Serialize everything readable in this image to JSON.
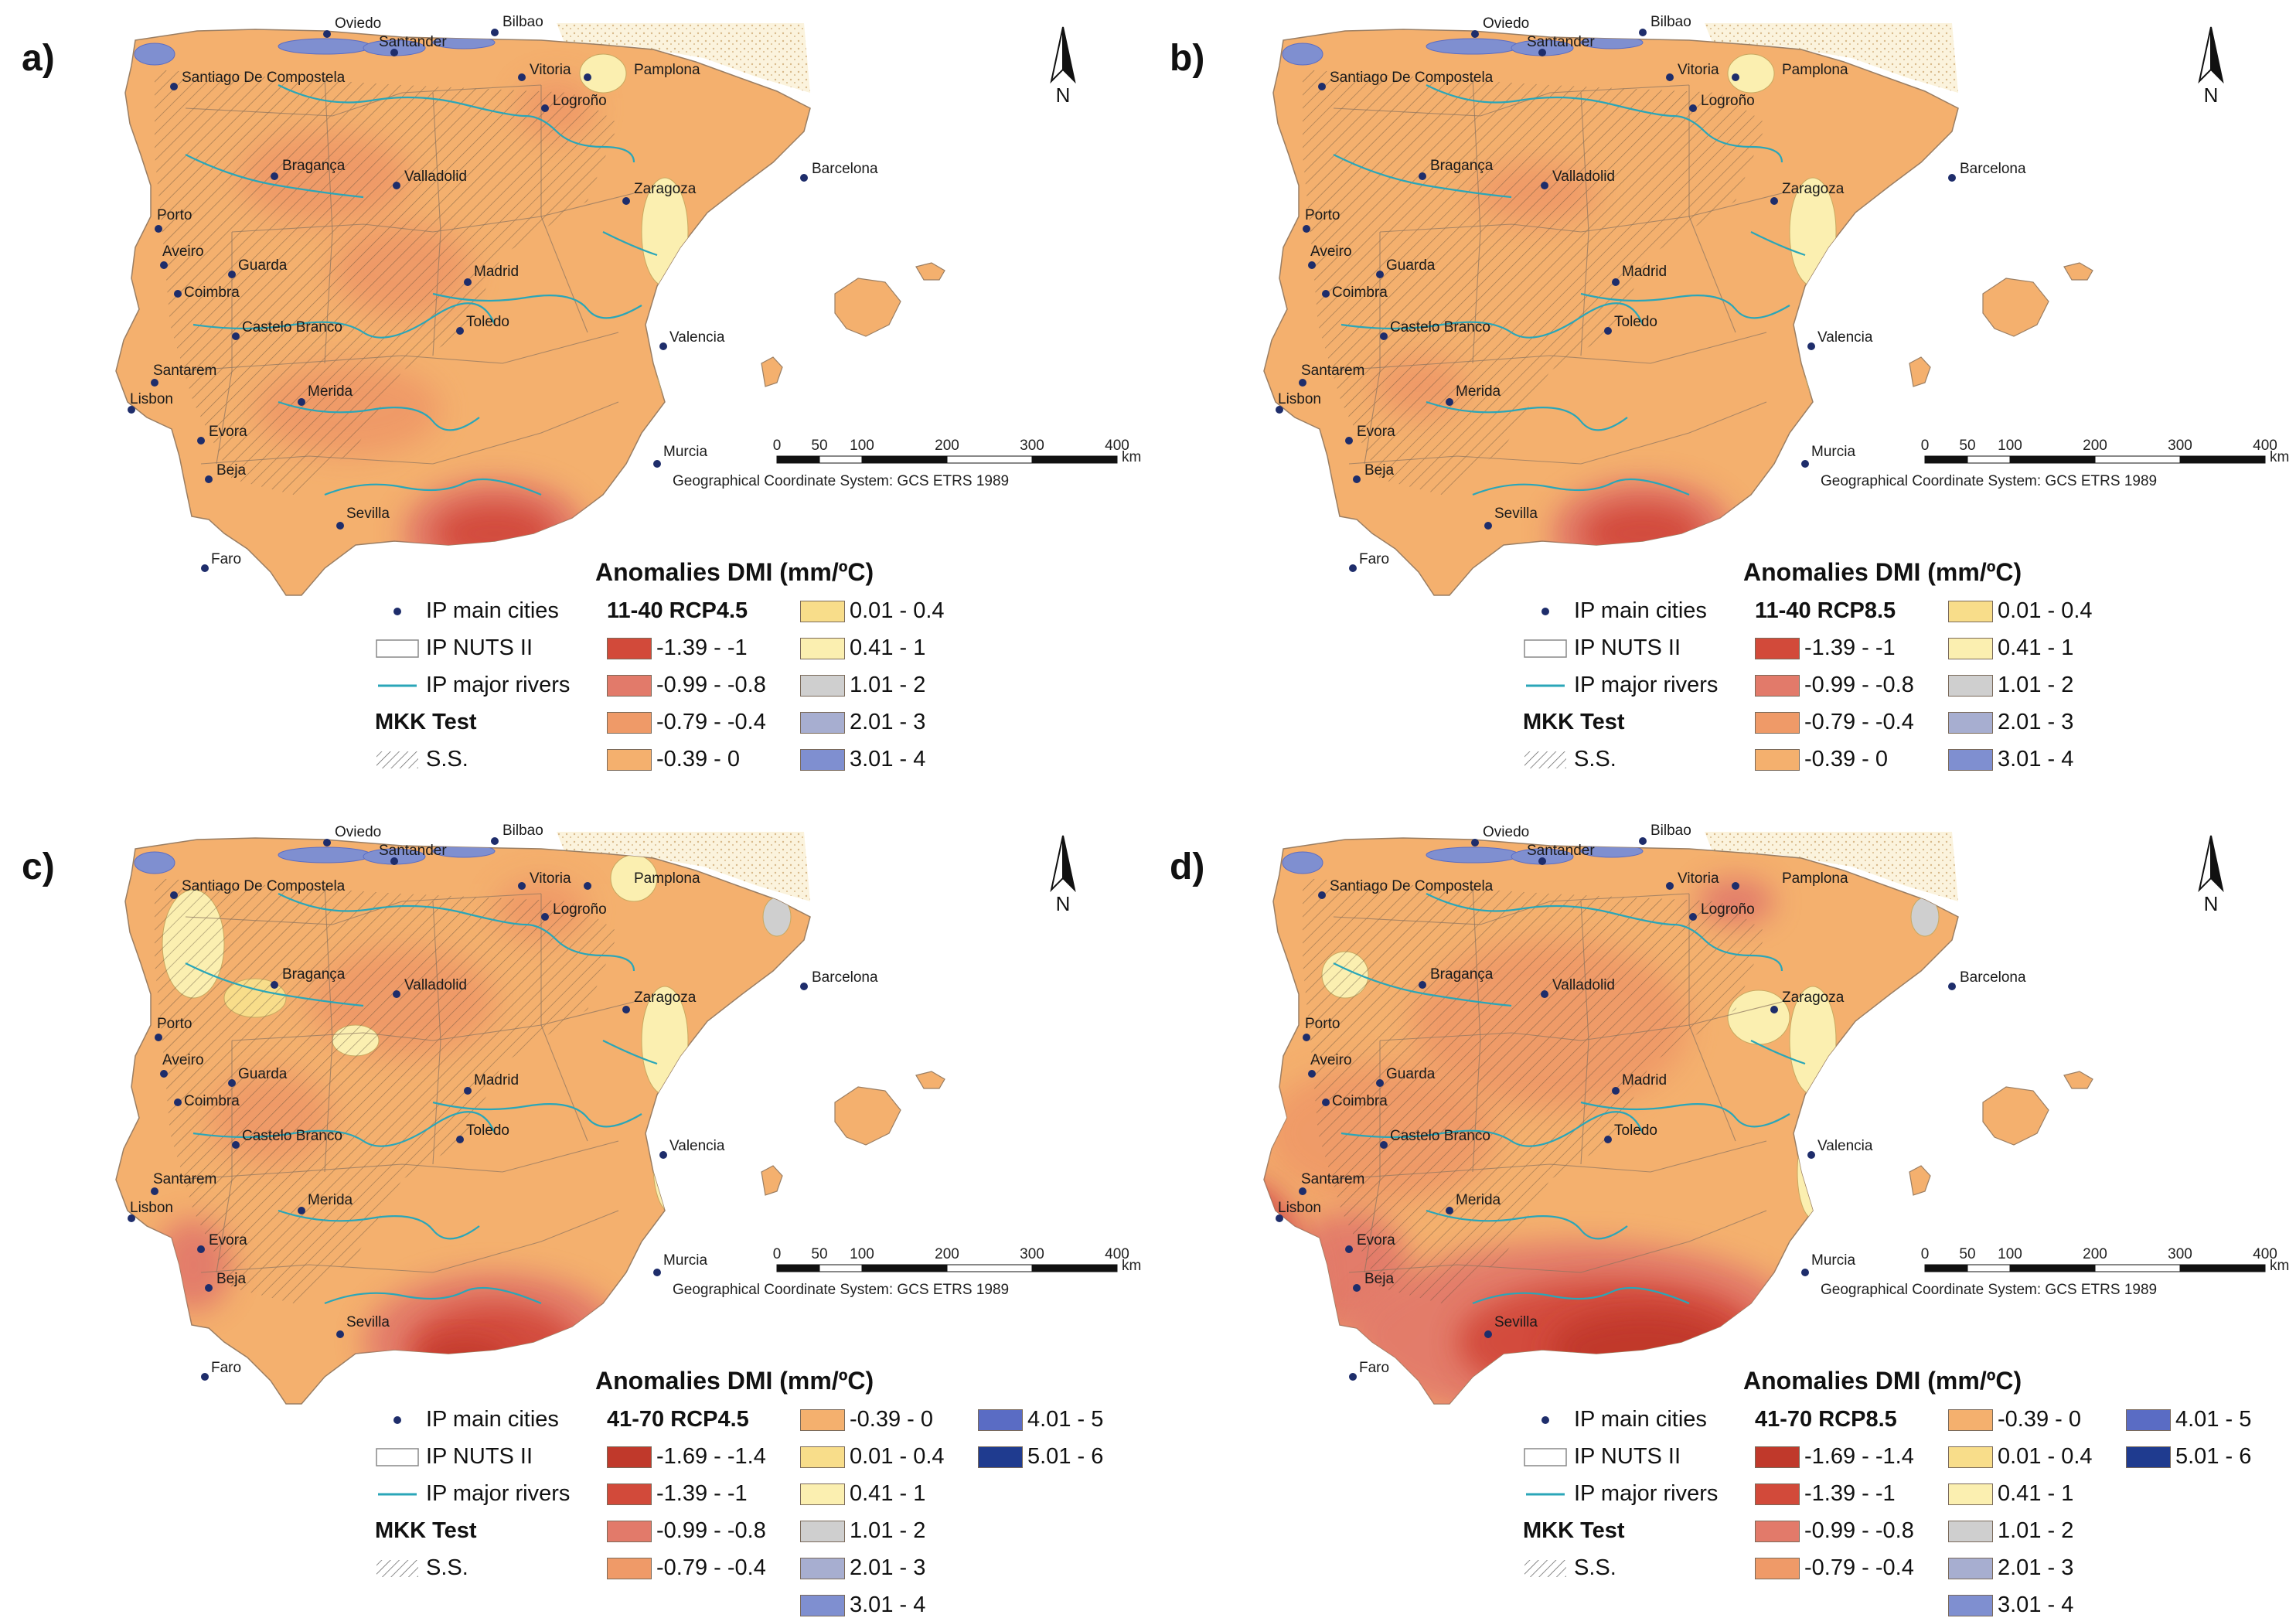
{
  "figure": {
    "legend_title": "Anomalies DMI (mm/ºC)",
    "scale_ticks": [
      "0",
      "50",
      "100",
      "200",
      "300",
      "400"
    ],
    "scale_unit": "km",
    "crs_note": "Geographical Coordinate System: GCS ETRS 1989",
    "north_letter": "N",
    "sym_cities": "IP main cities",
    "sym_nuts": "IP NUTS II",
    "sym_rivers": "IP major rivers",
    "mkk_title": "MKK Test",
    "ss_label": "S.S."
  },
  "cities": [
    "Oviedo",
    "Santander",
    "Bilbao",
    "Santiago De Compostela",
    "Vitoria",
    "Pamplona",
    "Logroño",
    "Bragança",
    "Valladolid",
    "Zaragoza",
    "Barcelona",
    "Porto",
    "Aveiro",
    "Guarda",
    "Coimbra",
    "Madrid",
    "Castelo Branco",
    "Toledo",
    "Valencia",
    "Santarem",
    "Lisbon",
    "Merida",
    "Evora",
    "Beja",
    "Murcia",
    "Sevilla",
    "Faro"
  ],
  "colors": {
    "c_169_14": "#c0392b",
    "c_139_1": "#d24a3a",
    "c_099_08": "#e27a6a",
    "c_079_04": "#ef9a68",
    "c_039_0": "#f4b06e",
    "c_001_04": "#f8dd8a",
    "c_041_1": "#fbefb0",
    "c_101_2": "#cfcfcf",
    "c_201_3": "#a7aed0",
    "c_301_4": "#7f8fd0",
    "c_401_5": "#5a6cc4",
    "c_501_6": "#1f3b8f"
  },
  "panels": [
    {
      "label": "a)",
      "scenario": "11-40 RCP4.5",
      "legend": [
        {
          "label": "-1.39 - -1",
          "color": "#d24a3a"
        },
        {
          "label": "-0.99 - -0.8",
          "color": "#e27a6a"
        },
        {
          "label": "-0.79 - -0.4",
          "color": "#ef9a68"
        },
        {
          "label": "-0.39 - 0",
          "color": "#f4b06e"
        },
        {
          "label": "0.01 - 0.4",
          "color": "#f8dd8a"
        },
        {
          "label": "0.41 - 1",
          "color": "#fbefb0"
        },
        {
          "label": "1.01 - 2",
          "color": "#cfcfcf"
        },
        {
          "label": "2.01 - 3",
          "color": "#a7aed0"
        },
        {
          "label": "3.01 - 4",
          "color": "#7f8fd0"
        }
      ]
    },
    {
      "label": "b)",
      "scenario": "11-40 RCP8.5",
      "legend": [
        {
          "label": "-1.39 - -1",
          "color": "#d24a3a"
        },
        {
          "label": "-0.99 - -0.8",
          "color": "#e27a6a"
        },
        {
          "label": "-0.79 - -0.4",
          "color": "#ef9a68"
        },
        {
          "label": "-0.39 - 0",
          "color": "#f4b06e"
        },
        {
          "label": "0.01 - 0.4",
          "color": "#f8dd8a"
        },
        {
          "label": "0.41 - 1",
          "color": "#fbefb0"
        },
        {
          "label": "1.01 - 2",
          "color": "#cfcfcf"
        },
        {
          "label": "2.01 - 3",
          "color": "#a7aed0"
        },
        {
          "label": "3.01 - 4",
          "color": "#7f8fd0"
        }
      ]
    },
    {
      "label": "c)",
      "scenario": "41-70 RCP4.5",
      "legend": [
        {
          "label": "-1.69 - -1.4",
          "color": "#c0392b"
        },
        {
          "label": "-1.39 - -1",
          "color": "#d24a3a"
        },
        {
          "label": "-0.99 - -0.8",
          "color": "#e27a6a"
        },
        {
          "label": "-0.79 - -0.4",
          "color": "#ef9a68"
        },
        {
          "label": "-0.39 - 0",
          "color": "#f4b06e"
        },
        {
          "label": "0.01 - 0.4",
          "color": "#f8dd8a"
        },
        {
          "label": "0.41 - 1",
          "color": "#fbefb0"
        },
        {
          "label": "1.01 - 2",
          "color": "#cfcfcf"
        },
        {
          "label": "2.01 - 3",
          "color": "#a7aed0"
        },
        {
          "label": "3.01 - 4",
          "color": "#7f8fd0"
        },
        {
          "label": "4.01 - 5",
          "color": "#5a6cc4"
        },
        {
          "label": "5.01 - 6",
          "color": "#1f3b8f"
        }
      ]
    },
    {
      "label": "d)",
      "scenario": "41-70 RCP8.5",
      "legend": [
        {
          "label": "-1.69 - -1.4",
          "color": "#c0392b"
        },
        {
          "label": "-1.39 - -1",
          "color": "#d24a3a"
        },
        {
          "label": "-0.99 - -0.8",
          "color": "#e27a6a"
        },
        {
          "label": "-0.79 - -0.4",
          "color": "#ef9a68"
        },
        {
          "label": "-0.39 - 0",
          "color": "#f4b06e"
        },
        {
          "label": "0.01 - 0.4",
          "color": "#f8dd8a"
        },
        {
          "label": "0.41 - 1",
          "color": "#fbefb0"
        },
        {
          "label": "1.01 - 2",
          "color": "#cfcfcf"
        },
        {
          "label": "2.01 - 3",
          "color": "#a7aed0"
        },
        {
          "label": "3.01 - 4",
          "color": "#7f8fd0"
        },
        {
          "label": "4.01 - 5",
          "color": "#5a6cc4"
        },
        {
          "label": "5.01 - 6",
          "color": "#1f3b8f"
        }
      ]
    }
  ]
}
